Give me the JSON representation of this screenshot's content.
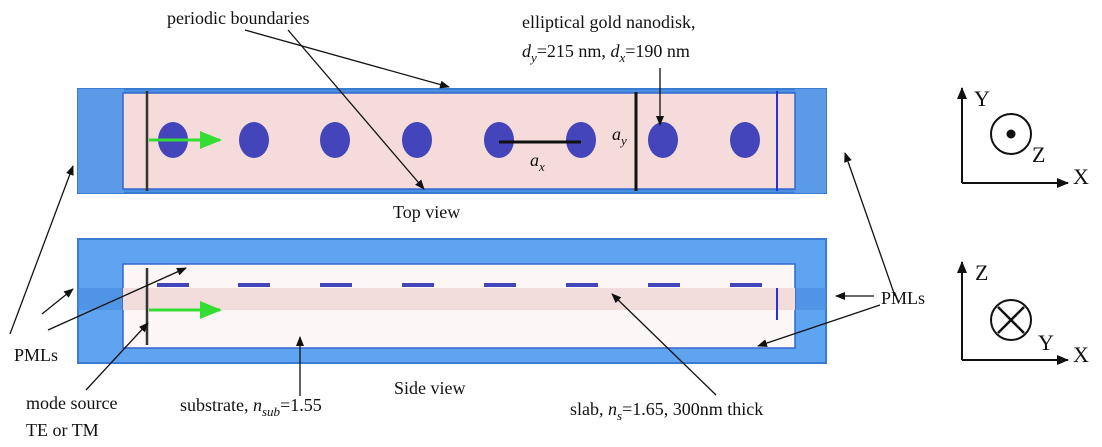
{
  "labels": {
    "periodic_boundaries": "periodic boundaries",
    "nanodisk_line1": "elliptical gold nanodisk,",
    "d_y_var": "d",
    "d_y_sub": "y",
    "d_y_val": "=215 nm, ",
    "d_x_var": "d",
    "d_x_sub": "x",
    "d_x_val": "=190 nm",
    "a_x_var": "a",
    "a_x_sub": "x",
    "a_y_var": "a",
    "a_y_sub": "y",
    "top_view": "Top view",
    "side_view": "Side view",
    "pmls_left": "PMLs",
    "pmls_right": "PMLs",
    "mode_source_1": "mode source",
    "mode_source_2": "TE or TM",
    "substrate_pre": "substrate, ",
    "substrate_var": "n",
    "substrate_sub": "sub",
    "substrate_val": "=1.55",
    "slab_pre": "slab, ",
    "slab_var": "n",
    "slab_sub": "s",
    "slab_val": "=1.65, 300nm thick",
    "axis_top_y": "Y",
    "axis_top_z": "Z",
    "axis_top_x": "X",
    "axis_side_z": "Z",
    "axis_side_y": "Y",
    "axis_side_x": "X"
  },
  "colors": {
    "pml_blue": "#4a8fe0",
    "pml_blue_light": "#6aaaf0",
    "top_fill": "#f5dcda",
    "side_fill": "#fdf6f6",
    "slab_band": "#f3dcdc",
    "disk": "#4444bb",
    "arrow_green": "#33dd33",
    "monitor": "#2233dd"
  }
}
